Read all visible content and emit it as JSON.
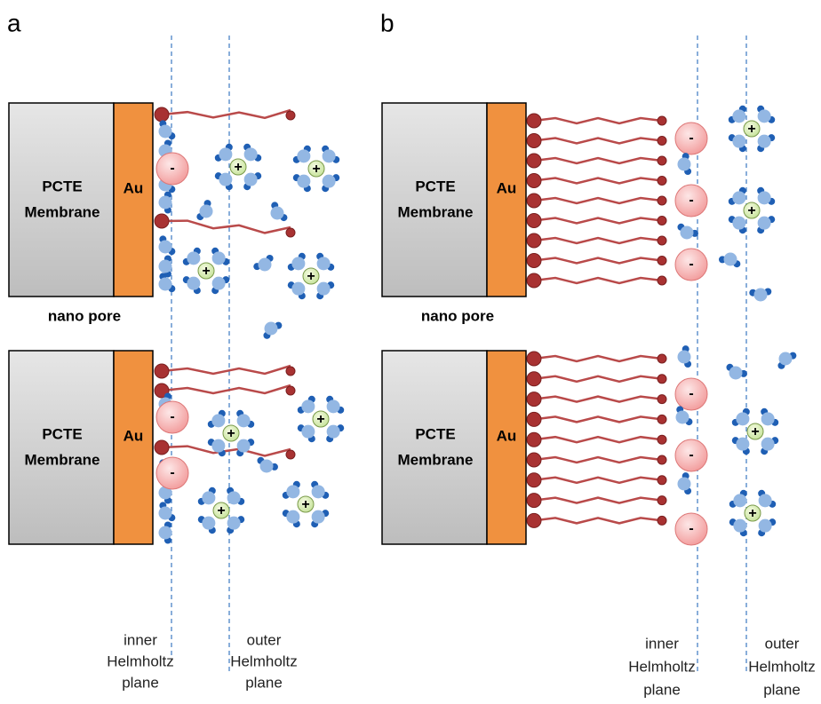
{
  "panels": [
    {
      "label": "a",
      "blocks": [
        {
          "membrane": [
            "PCTE",
            "Membrane"
          ],
          "metal": "Au"
        },
        {
          "membrane": [
            "PCTE",
            "Membrane"
          ],
          "metal": "Au"
        }
      ],
      "pore_label": "nano pore",
      "planes": [
        {
          "label": [
            "inner",
            "Helmholtz",
            "plane"
          ]
        },
        {
          "label": [
            "outer",
            "Helmholtz",
            "plane"
          ]
        }
      ]
    },
    {
      "label": "b",
      "blocks": [
        {
          "membrane": [
            "PCTE",
            "Membrane"
          ],
          "metal": "Au"
        },
        {
          "membrane": [
            "PCTE",
            "Membrane"
          ],
          "metal": "Au"
        }
      ],
      "pore_label": "nano pore",
      "planes": [
        {
          "label": [
            "inner",
            "Helmholtz",
            "plane"
          ]
        },
        {
          "label": [
            "outer",
            "Helmholtz",
            "plane"
          ]
        }
      ]
    }
  ],
  "anion_sign": "-",
  "cation_sign": "+"
}
